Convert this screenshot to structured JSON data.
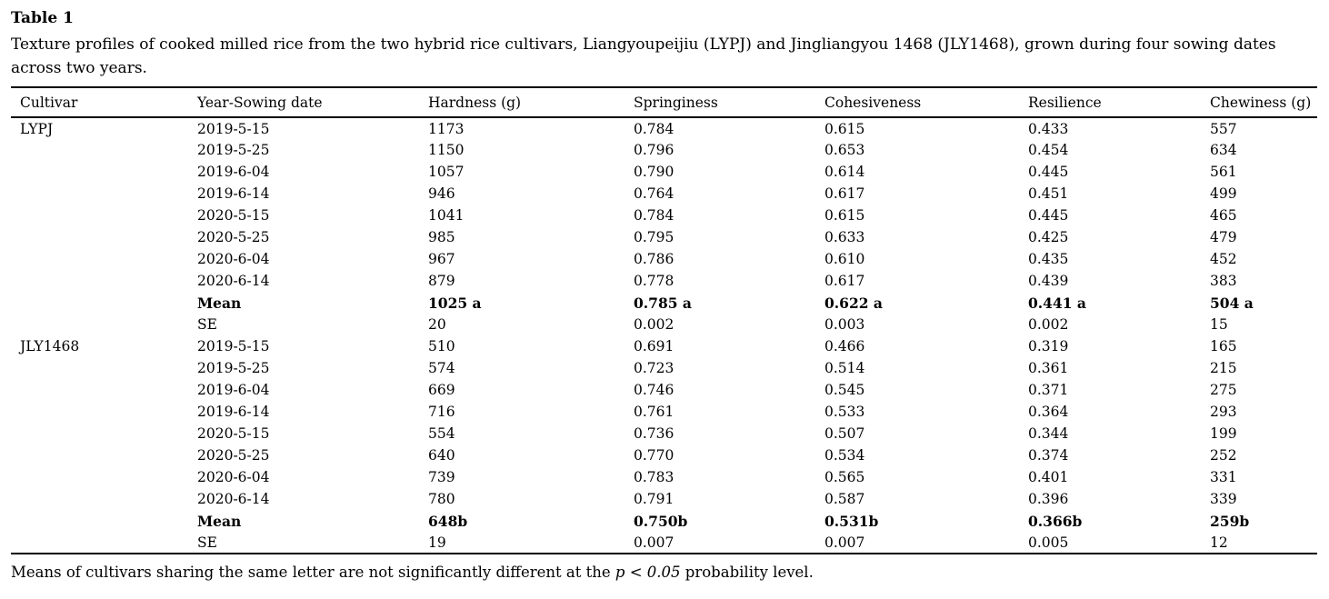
{
  "page": {
    "label": "Table 1",
    "caption_line1": "Texture profiles of cooked milled rice from the two hybrid rice cultivars, Liangyoupeijiu (LYPJ) and Jingliangyou 1468 (JLY1468), grown during four sowing dates",
    "caption_line2": "across two years.",
    "footnote": {
      "prefix": "Means of cultivars sharing the same letter are not significantly different at the ",
      "italic": "p < 0.05",
      "suffix": " probability level."
    }
  },
  "chart_data": {
    "type": "table",
    "title": "Table 1. Texture profiles of cooked milled rice from two hybrid rice cultivars",
    "columns": [
      "Cultivar",
      "Year-Sowing date",
      "Hardness (g)",
      "Springiness",
      "Cohesiveness",
      "Resilience",
      "Chewiness (g)"
    ],
    "rows": [
      {
        "bold": false,
        "cells": [
          "LYPJ",
          "2019-5-15",
          "1173",
          "0.784",
          "0.615",
          "0.433",
          "557"
        ]
      },
      {
        "bold": false,
        "cells": [
          "",
          "2019-5-25",
          "1150",
          "0.796",
          "0.653",
          "0.454",
          "634"
        ]
      },
      {
        "bold": false,
        "cells": [
          "",
          "2019-6-04",
          "1057",
          "0.790",
          "0.614",
          "0.445",
          "561"
        ]
      },
      {
        "bold": false,
        "cells": [
          "",
          "2019-6-14",
          "946",
          "0.764",
          "0.617",
          "0.451",
          "499"
        ]
      },
      {
        "bold": false,
        "cells": [
          "",
          "2020-5-15",
          "1041",
          "0.784",
          "0.615",
          "0.445",
          "465"
        ]
      },
      {
        "bold": false,
        "cells": [
          "",
          "2020-5-25",
          "985",
          "0.795",
          "0.633",
          "0.425",
          "479"
        ]
      },
      {
        "bold": false,
        "cells": [
          "",
          "2020-6-04",
          "967",
          "0.786",
          "0.610",
          "0.435",
          "452"
        ]
      },
      {
        "bold": false,
        "cells": [
          "",
          "2020-6-14",
          "879",
          "0.778",
          "0.617",
          "0.439",
          "383"
        ]
      },
      {
        "bold": true,
        "cells": [
          "",
          "Mean",
          "1025 a",
          "0.785 a",
          "0.622 a",
          "0.441 a",
          "504 a"
        ]
      },
      {
        "bold": false,
        "cells": [
          "",
          "SE",
          "20",
          "0.002",
          "0.003",
          "0.002",
          "15"
        ]
      },
      {
        "bold": false,
        "cells": [
          "JLY1468",
          "2019-5-15",
          "510",
          "0.691",
          "0.466",
          "0.319",
          "165"
        ]
      },
      {
        "bold": false,
        "cells": [
          "",
          "2019-5-25",
          "574",
          "0.723",
          "0.514",
          "0.361",
          "215"
        ]
      },
      {
        "bold": false,
        "cells": [
          "",
          "2019-6-04",
          "669",
          "0.746",
          "0.545",
          "0.371",
          "275"
        ]
      },
      {
        "bold": false,
        "cells": [
          "",
          "2019-6-14",
          "716",
          "0.761",
          "0.533",
          "0.364",
          "293"
        ]
      },
      {
        "bold": false,
        "cells": [
          "",
          "2020-5-15",
          "554",
          "0.736",
          "0.507",
          "0.344",
          "199"
        ]
      },
      {
        "bold": false,
        "cells": [
          "",
          "2020-5-25",
          "640",
          "0.770",
          "0.534",
          "0.374",
          "252"
        ]
      },
      {
        "bold": false,
        "cells": [
          "",
          "2020-6-04",
          "739",
          "0.783",
          "0.565",
          "0.401",
          "331"
        ]
      },
      {
        "bold": false,
        "cells": [
          "",
          "2020-6-14",
          "780",
          "0.791",
          "0.587",
          "0.396",
          "339"
        ]
      },
      {
        "bold": true,
        "cells": [
          "",
          "Mean",
          "648b",
          "0.750b",
          "0.531b",
          "0.366b",
          "259b"
        ]
      },
      {
        "bold": false,
        "cells": [
          "",
          "SE",
          "19",
          "0.007",
          "0.007",
          "0.005",
          "12"
        ]
      }
    ]
  }
}
